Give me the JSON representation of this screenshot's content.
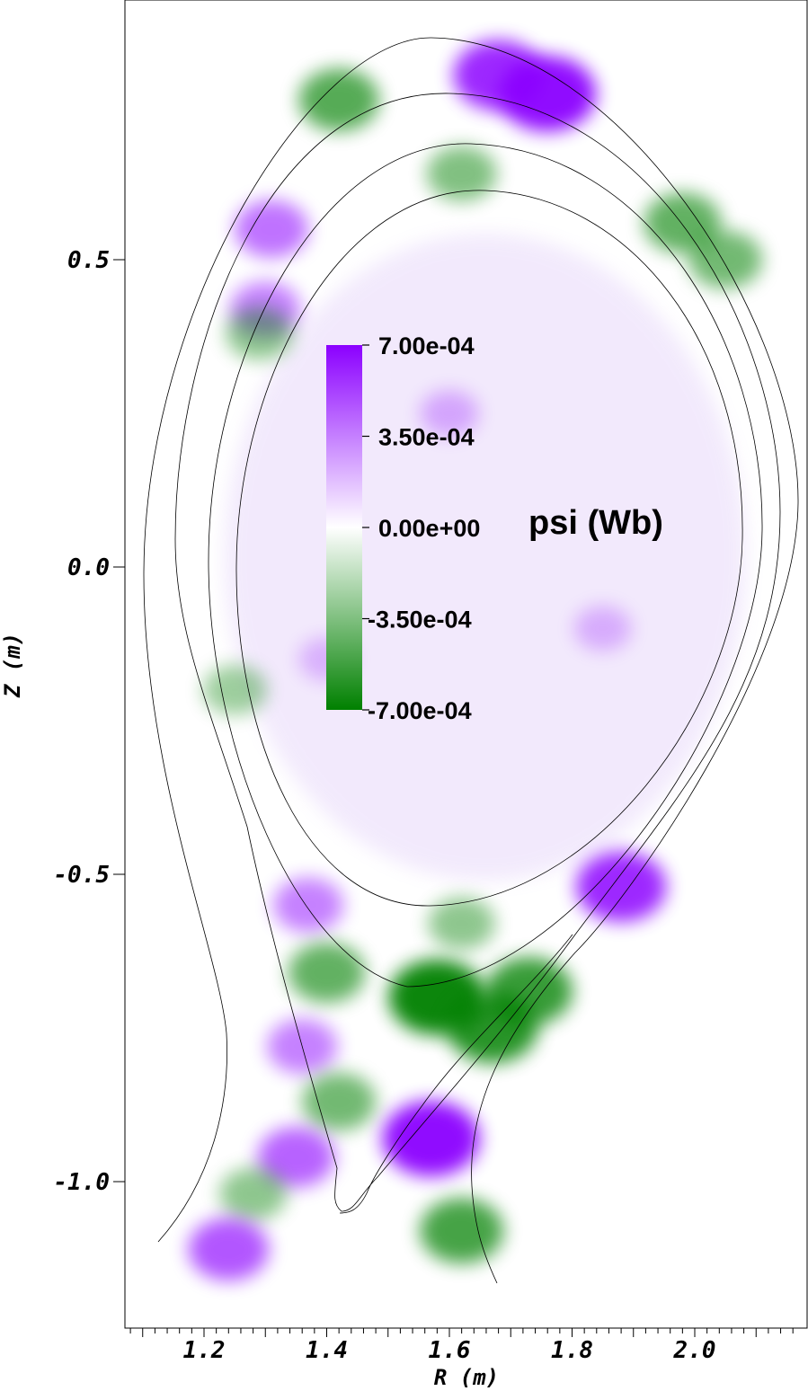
{
  "chart_data": {
    "type": "heatmap",
    "title": "",
    "xlabel": "R (m)",
    "ylabel": "Z (m)",
    "xlim": [
      1.07,
      2.17
    ],
    "ylim": [
      -1.23,
      0.92
    ],
    "x_ticks": [
      1.2,
      1.4,
      1.6,
      1.8,
      2.0
    ],
    "x_tick_labels": [
      "1.2",
      "1.4",
      "1.6",
      "1.8",
      "2.0"
    ],
    "y_ticks": [
      0.5,
      0.0,
      -0.5,
      -1.0
    ],
    "y_tick_labels": [
      "0.5",
      "0.0",
      "-0.5",
      "-1.0"
    ],
    "colorbar": {
      "title": "psi (Wb)",
      "min": -0.0007,
      "max": 0.0007,
      "ticks": [
        0.0007,
        0.00035,
        0.0,
        -0.00035,
        -0.0007
      ],
      "tick_labels": [
        "7.00e-04",
        "3.50e-04",
        "0.00e+00",
        "-3.50e-04",
        "-7.00e-04"
      ],
      "colors": {
        "max": "#8b00ff",
        "mid": "#ffffff",
        "min": "#008000"
      }
    },
    "field_blobs": [
      {
        "r": 1.68,
        "z": 0.8,
        "value": 0.0006
      },
      {
        "r": 1.76,
        "z": 0.77,
        "value": 0.0007
      },
      {
        "r": 1.42,
        "z": 0.76,
        "value": -0.00045
      },
      {
        "r": 1.62,
        "z": 0.64,
        "value": -0.0003
      },
      {
        "r": 1.98,
        "z": 0.56,
        "value": -0.0004
      },
      {
        "r": 2.05,
        "z": 0.5,
        "value": -0.00035
      },
      {
        "r": 1.31,
        "z": 0.55,
        "value": 0.00035
      },
      {
        "r": 1.3,
        "z": 0.42,
        "value": 0.0003
      },
      {
        "r": 1.29,
        "z": 0.38,
        "value": -0.00025
      },
      {
        "r": 1.6,
        "z": 0.25,
        "value": 0.00012
      },
      {
        "r": 1.85,
        "z": -0.1,
        "value": 0.0001
      },
      {
        "r": 1.4,
        "z": -0.15,
        "value": 8e-05
      },
      {
        "r": 1.25,
        "z": -0.2,
        "value": -0.0002
      },
      {
        "r": 1.88,
        "z": -0.52,
        "value": 0.0006
      },
      {
        "r": 1.37,
        "z": -0.55,
        "value": 0.0003
      },
      {
        "r": 1.62,
        "z": -0.58,
        "value": -0.00025
      },
      {
        "r": 1.4,
        "z": -0.66,
        "value": -0.0004
      },
      {
        "r": 1.58,
        "z": -0.7,
        "value": -0.0007
      },
      {
        "r": 1.67,
        "z": -0.75,
        "value": -0.0006
      },
      {
        "r": 1.73,
        "z": -0.69,
        "value": -0.00055
      },
      {
        "r": 1.36,
        "z": -0.78,
        "value": 0.0003
      },
      {
        "r": 1.42,
        "z": -0.87,
        "value": -0.00035
      },
      {
        "r": 1.57,
        "z": -0.93,
        "value": 0.0007
      },
      {
        "r": 1.35,
        "z": -0.96,
        "value": 0.0004
      },
      {
        "r": 1.62,
        "z": -1.08,
        "value": -0.0005
      },
      {
        "r": 1.28,
        "z": -1.02,
        "value": -0.00025
      },
      {
        "r": 1.24,
        "z": -1.11,
        "value": 0.00045
      }
    ]
  }
}
